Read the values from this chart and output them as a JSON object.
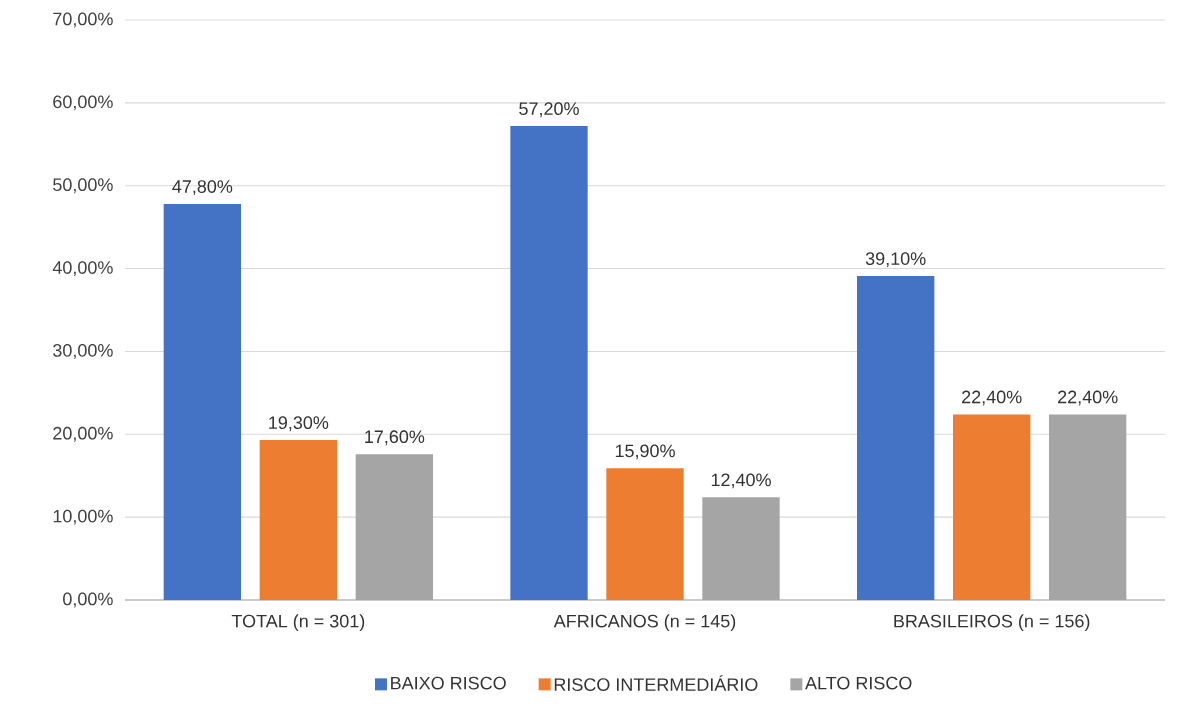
{
  "chart_data": {
    "type": "bar",
    "categories": [
      "TOTAL (n = 301)",
      "AFRICANOS (n = 145)",
      "BRASILEIROS (n = 156)"
    ],
    "series": [
      {
        "name": "BAIXO RISCO",
        "color": "#4472c4",
        "values": [
          47.8,
          57.2,
          39.1
        ],
        "value_labels": [
          "47,80%",
          "57,20%",
          "39,10%"
        ]
      },
      {
        "name": "RISCO INTERMEDIÁRIO",
        "color": "#ed7d31",
        "values": [
          19.3,
          15.9,
          22.4
        ],
        "value_labels": [
          "19,30%",
          "15,90%",
          "22,40%"
        ]
      },
      {
        "name": "ALTO RISCO",
        "color": "#a5a5a5",
        "values": [
          17.6,
          12.4,
          22.4
        ],
        "value_labels": [
          "17,60%",
          "12,40%",
          "22,40%"
        ]
      }
    ],
    "ylim": [
      0,
      70
    ],
    "yticks": [
      {
        "value": 0,
        "label": "0,00%"
      },
      {
        "value": 10,
        "label": "10,00%"
      },
      {
        "value": 20,
        "label": "20,00%"
      },
      {
        "value": 30,
        "label": "30,00%"
      },
      {
        "value": 40,
        "label": "40,00%"
      },
      {
        "value": 50,
        "label": "50,00%"
      },
      {
        "value": 60,
        "label": "60,00%"
      },
      {
        "value": 70,
        "label": "70,00%"
      }
    ],
    "grid": "y",
    "legend": "bottom"
  }
}
